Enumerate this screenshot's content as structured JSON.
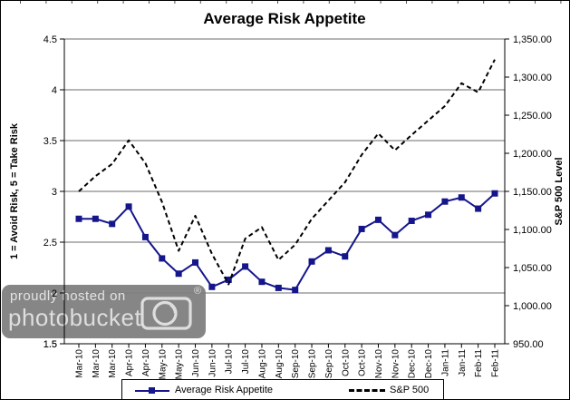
{
  "title": "Average Risk Appetite",
  "watermark": {
    "line1": "proudly hosted on",
    "line2": "photobucket",
    "registered": "®"
  },
  "legend": {
    "risk_label": "Average Risk Appetite",
    "sp_label": "S&P 500"
  },
  "colors": {
    "risk_series": "#15158c",
    "sp_series": "#000000",
    "gridline": "#6b6b6b",
    "axis": "#000000",
    "watermark_bg": "#7f7f7f"
  },
  "chart_data": {
    "type": "line",
    "title": "Average Risk Appetite",
    "legend_position": "bottom",
    "grid": "horizontal-only",
    "categories": [
      "Mar-10",
      "Mar-10",
      "Mar-10",
      "Apr-10",
      "Apr-10",
      "May-10",
      "May-10",
      "Jun-10",
      "Jun-10",
      "Jul-10",
      "Jul-10",
      "Aug-10",
      "Aug-10",
      "Sep-10",
      "Sep-10",
      "Sep-10",
      "Oct-10",
      "Oct-10",
      "Nov-10",
      "Nov-10",
      "Dec-10",
      "Dec-10",
      "Jan-11",
      "Jan-11",
      "Feb-11",
      "Feb-11"
    ],
    "series": [
      {
        "name": "Average Risk Appetite",
        "axis": "left",
        "line_style": "solid",
        "marker": "square",
        "color": "#15158c",
        "values": [
          2.73,
          2.73,
          2.68,
          2.85,
          2.55,
          2.34,
          2.19,
          2.3,
          2.06,
          2.13,
          2.26,
          2.11,
          2.05,
          2.03,
          2.31,
          2.42,
          2.36,
          2.63,
          2.72,
          2.57,
          2.71,
          2.77,
          2.9,
          2.94,
          2.83,
          2.98
        ]
      },
      {
        "name": "S&P 500",
        "axis": "right",
        "line_style": "dashed",
        "marker": "none",
        "color": "#000000",
        "values": [
          1150,
          1170,
          1186,
          1217,
          1187,
          1136,
          1072,
          1118,
          1068,
          1028,
          1088,
          1103,
          1060,
          1080,
          1114,
          1138,
          1162,
          1198,
          1226,
          1204,
          1224,
          1243,
          1262,
          1292,
          1280,
          1323
        ]
      }
    ],
    "left_axis": {
      "title": "1 = Avoid Risk, 5 = Take Risk",
      "min": 1.5,
      "max": 4.5,
      "tick_step": 0.5,
      "tick_labels": [
        "4.5",
        "4",
        "3.5",
        "3",
        "2.5",
        "2",
        "1.5"
      ]
    },
    "right_axis": {
      "title": "S&P 500 Level",
      "min": 950,
      "max": 1350,
      "tick_step": 50,
      "tick_labels": [
        "1,350.00",
        "1,300.00",
        "1,250.00",
        "1,200.00",
        "1,150.00",
        "1,100.00",
        "1,050.00",
        "1,000.00",
        "950.00"
      ]
    }
  }
}
